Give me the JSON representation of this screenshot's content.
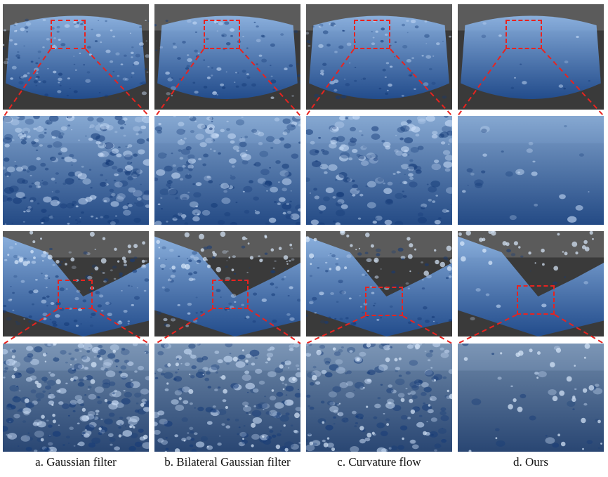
{
  "figure": {
    "captions": [
      "a. Gaussian filter",
      "b. Bilateral Gaussian filter",
      "c. Curvature flow",
      "d. Ours"
    ],
    "columns": 4,
    "rows": [
      {
        "view": "overview",
        "scene": "column-collapse"
      },
      {
        "view": "zoom",
        "scene": "column-collapse"
      },
      {
        "view": "overview",
        "scene": "dam-break"
      },
      {
        "view": "zoom",
        "scene": "dam-break"
      }
    ],
    "colors": {
      "fluid_dark": "#1e4f9a",
      "fluid_light": "#8fb8ea",
      "checker_dark": "#3a3a3a",
      "checker_light": "#d8d8d8",
      "highlight_box": "#e8231f"
    },
    "surface_noise_by_column": [
      1.0,
      0.75,
      0.7,
      0.1
    ]
  }
}
